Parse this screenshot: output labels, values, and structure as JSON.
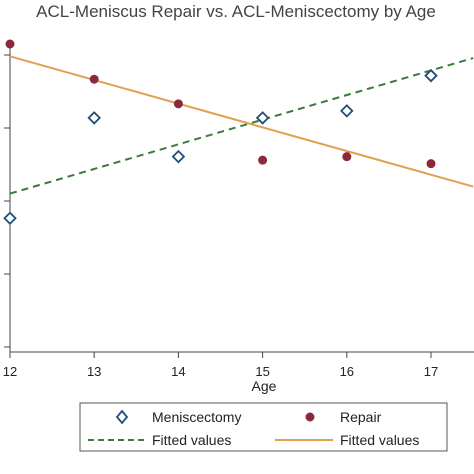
{
  "chart_data": {
    "type": "scatter",
    "title": "ACL-Meniscus Repair vs. ACL-Meniscectomy by Age",
    "xlabel": "Age",
    "ylabel": "",
    "xlim": [
      12,
      17.5
    ],
    "ylim": [
      0,
      1
    ],
    "x_ticks": [
      12,
      13,
      14,
      15,
      16,
      17
    ],
    "grid": false,
    "legend_position": "bottom",
    "series": [
      {
        "name": "Meniscectomy",
        "marker": "hollow-diamond",
        "color": "#1f4e79",
        "x": [
          12,
          13,
          14,
          15,
          16,
          17
        ],
        "y": [
          0.38,
          0.665,
          0.555,
          0.665,
          0.685,
          0.785
        ]
      },
      {
        "name": "Repair",
        "marker": "filled-circle",
        "color": "#8b2a3a",
        "x": [
          12,
          13,
          14,
          15,
          16,
          17
        ],
        "y": [
          0.875,
          0.775,
          0.705,
          0.545,
          0.555,
          0.535
        ]
      }
    ],
    "fits": [
      {
        "name": "Fitted values",
        "style": "dashed",
        "color": "#3d7a3d",
        "x": [
          12,
          17.5
        ],
        "y": [
          0.45,
          0.835
        ]
      },
      {
        "name": "Fitted values",
        "style": "solid",
        "color": "#e0a050",
        "x": [
          12,
          17.5
        ],
        "y": [
          0.84,
          0.47
        ]
      }
    ]
  }
}
